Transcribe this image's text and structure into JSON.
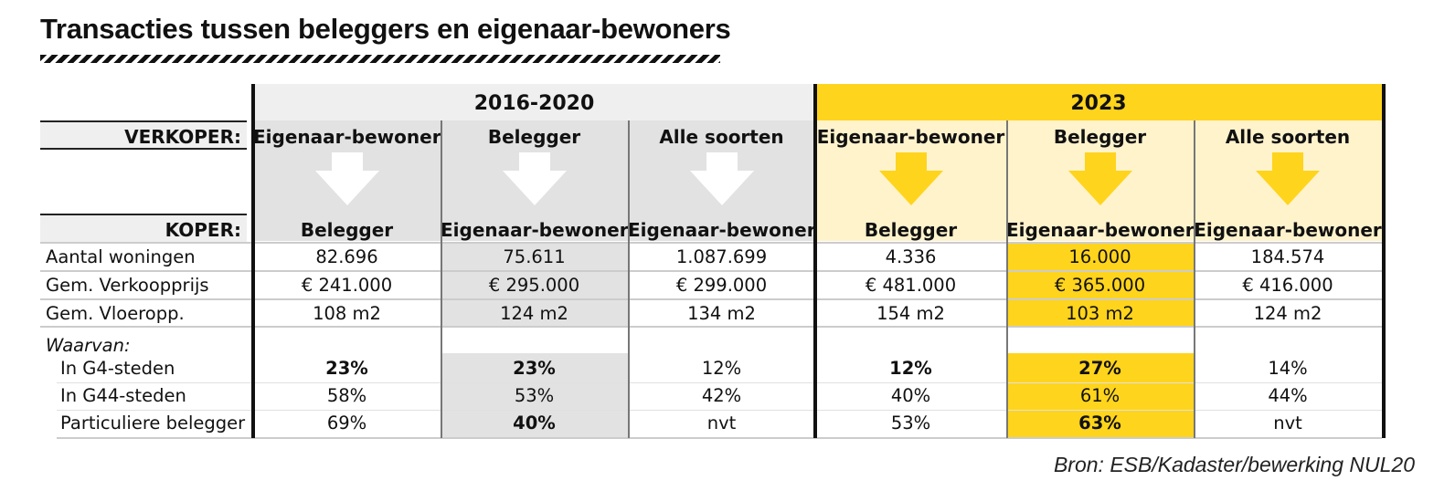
{
  "title": "Transacties tussen beleggers en eigenaar-bewoners",
  "colors": {
    "yellow": "#ffd41c",
    "yellow_light": "#fff3cc",
    "grey": "#e2e2e2",
    "grey_light": "#efefef"
  },
  "periods": [
    "2016-2020",
    "2023"
  ],
  "header": {
    "verkoper_label": "VERKOPER:",
    "koper_label": "KOPER:"
  },
  "columns": [
    {
      "verkoper": "Eigenaar-bewoner",
      "koper": "Belegger"
    },
    {
      "verkoper": "Belegger",
      "koper": "Eigenaar-bewoner"
    },
    {
      "verkoper": "Alle soorten",
      "koper": "Eigenaar-bewoner"
    },
    {
      "verkoper": "Eigenaar-bewoner",
      "koper": "Belegger"
    },
    {
      "verkoper": "Belegger",
      "koper": "Eigenaar-bewoner"
    },
    {
      "verkoper": "Alle soorten",
      "koper": "Eigenaar-bewoner"
    }
  ],
  "rows": [
    {
      "label": "Aantal woningen",
      "values": [
        "82.696",
        "75.611",
        "1.087.699",
        "4.336",
        "16.000",
        "184.574"
      ]
    },
    {
      "label": "Gem. Verkoopprijs",
      "values": [
        "€ 241.000",
        "€ 295.000",
        "€ 299.000",
        "€ 481.000",
        "€ 365.000",
        "€ 416.000"
      ]
    },
    {
      "label": "Gem. Vloeropp.",
      "values": [
        "108 m2",
        "124 m2",
        "134 m2",
        "154 m2",
        "103 m2",
        "124 m2"
      ]
    }
  ],
  "waarvan_label": "Waarvan:",
  "sub_rows": [
    {
      "label": "In G4-steden",
      "values": [
        "23%",
        "23%",
        "12%",
        "12%",
        "27%",
        "14%"
      ]
    },
    {
      "label": "In G44-steden",
      "values": [
        "58%",
        "53%",
        "42%",
        "40%",
        "61%",
        "44%"
      ]
    },
    {
      "label": "Particuliere belegger",
      "values": [
        "69%",
        "40%",
        "nvt",
        "53%",
        "63%",
        "nvt"
      ]
    }
  ],
  "source": "Bron: ESB/Kadaster/bewerking NUL20"
}
